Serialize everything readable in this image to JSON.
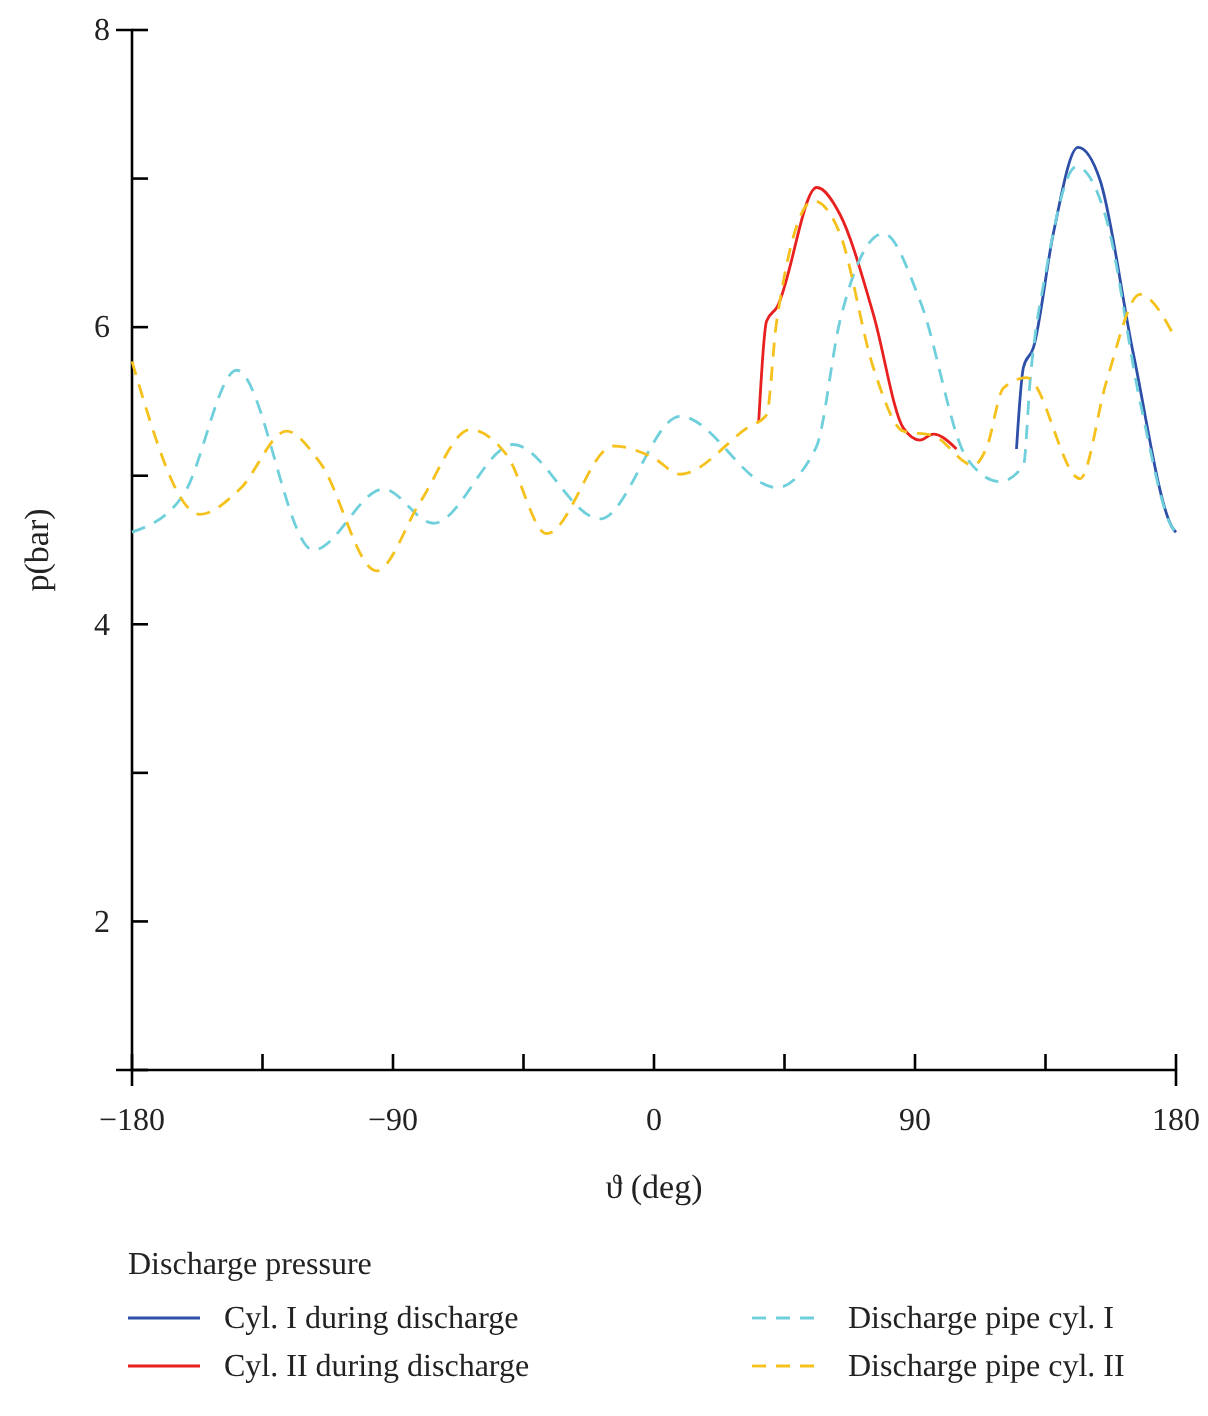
{
  "chart_data": {
    "type": "line",
    "xlabel": "ϑ (deg)",
    "ylabel": "p(bar)",
    "legend_title": "Discharge pressure",
    "legend": "bottom",
    "grid": false,
    "xlim": [
      -180,
      180
    ],
    "ylim": [
      1,
      8
    ],
    "xticks": [
      {
        "value": -180,
        "label": "−180"
      },
      {
        "value": -135,
        "label": null
      },
      {
        "value": -90,
        "label": "−90"
      },
      {
        "value": -45,
        "label": null
      },
      0,
      {
        "value": 45,
        "label": null
      },
      90,
      {
        "value": 135,
        "label": null
      },
      180
    ],
    "yticks": [
      {
        "value": 1,
        "label": null
      },
      2,
      {
        "value": 3,
        "label": null
      },
      4,
      {
        "value": 5,
        "label": null
      },
      6,
      {
        "value": 7,
        "label": null
      },
      8
    ],
    "series": [
      {
        "name": "Cyl. I during discharge",
        "color": "#2e4fa8",
        "line_style": "solid",
        "x": [
          125,
          127.4,
          130.8,
          137.7,
          146.2,
          153.8,
          165.3,
          179.1,
          180
        ],
        "values": [
          5.18,
          5.73,
          5.86,
          6.63,
          7.21,
          6.99,
          5.82,
          4.64,
          4.62
        ]
      },
      {
        "name": "Cyl. II during discharge",
        "color": "#e8201f",
        "line_style": "solid",
        "x": [
          36.1,
          38.8,
          42.3,
          56.1,
          64.1,
          75.6,
          86,
          91.7,
          96.3,
          104.3
        ],
        "values": [
          5.36,
          6.04,
          6.13,
          6.94,
          6.76,
          6.09,
          5.32,
          5.24,
          5.28,
          5.18
        ]
      },
      {
        "name": "Discharge pipe cyl. I",
        "color": "#6fd0dc",
        "line_style": "dashed",
        "x": [
          -180,
          -162.3,
          -143.9,
          -117.5,
          -93.3,
          -76.1,
          -48.5,
          -18.6,
          9,
          42.3,
          55.9,
          64.1,
          79.1,
          91.7,
          107.8,
          119.3,
          127.4,
          129.7,
          135.4,
          145.7,
          156.1,
          167.6,
          179.1,
          180
        ],
        "values": [
          4.62,
          4.87,
          5.71,
          4.5,
          4.91,
          4.68,
          5.21,
          4.71,
          5.4,
          4.92,
          5.19,
          6.04,
          6.63,
          6.18,
          5.12,
          4.96,
          5.07,
          5.64,
          6.4,
          7.08,
          6.72,
          5.5,
          4.64,
          4.62
        ]
      },
      {
        "name": "Discharge pipe cyl. II",
        "color": "#f5c11c",
        "line_style": "dashed",
        "x": [
          -180,
          -156.6,
          -142.8,
          -126.7,
          -115.2,
          -95.7,
          -80.7,
          -63.4,
          -50.8,
          -37,
          -14,
          -0.2,
          9,
          32,
          38.8,
          42.3,
          55,
          64.1,
          75.6,
          86,
          96.3,
          110.1,
          114.7,
          120.5,
          128.5,
          146.9,
          156.1,
          167.6,
          179.1
        ],
        "values": [
          5.77,
          4.74,
          4.91,
          5.3,
          5.09,
          4.36,
          4.82,
          5.31,
          5.14,
          4.61,
          5.2,
          5.12,
          5.01,
          5.32,
          5.41,
          6.04,
          6.85,
          6.63,
          5.73,
          5.3,
          5.27,
          5.07,
          5.19,
          5.59,
          5.66,
          4.98,
          5.64,
          6.22,
          5.95
        ]
      }
    ]
  }
}
